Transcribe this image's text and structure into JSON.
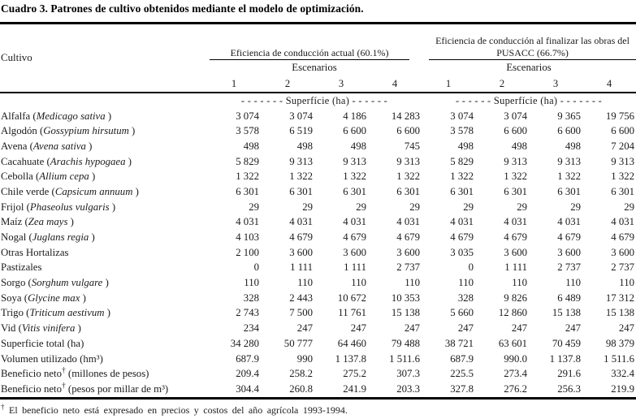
{
  "title": "Cuadro 3. Patrones de cultivo obtenidos mediante el modelo de optimización.",
  "header": {
    "cultivo": "Cultivo",
    "group_left": "Eficiencia de conducción actual (60.1%)",
    "group_right": "Eficiencia de conducción al finalizar las obras del PUSACC (66.7%)",
    "escenarios_label": "Escenarios",
    "scenarios": [
      "1",
      "2",
      "3",
      "4"
    ]
  },
  "table": {
    "unit_left": "- - - - - - -  Superfície (ha)  - - - - - -",
    "unit_right": "- - - - - -  Superfície (ha)  - - - - - - -",
    "rows": [
      {
        "label": "Alfalfa",
        "latin": "Medicago sativa",
        "values": [
          "3 074",
          "3 074",
          "4 186",
          "14 283",
          "3 074",
          "3 074",
          "9 365",
          "19 756"
        ]
      },
      {
        "label": "Algodón",
        "latin": "Gossypium hirsutum",
        "values": [
          "3 578",
          "6 519",
          "6 600",
          "6 600",
          "3 578",
          "6 600",
          "6 600",
          "6 600"
        ]
      },
      {
        "label": "Avena",
        "latin": "Avena sativa",
        "values": [
          "498",
          "498",
          "498",
          "745",
          "498",
          "498",
          "498",
          "7 204"
        ]
      },
      {
        "label": "Cacahuate",
        "latin": "Arachis hypogaea",
        "values": [
          "5 829",
          "9 313",
          "9 313",
          "9 313",
          "5 829",
          "9 313",
          "9 313",
          "9 313"
        ]
      },
      {
        "label": "Cebolla",
        "latin": "Allium cepa",
        "values": [
          "1 322",
          "1 322",
          "1 322",
          "1 322",
          "1 322",
          "1 322",
          "1 322",
          "1 322"
        ]
      },
      {
        "label": "Chile verde",
        "latin": "Capsicum annuum",
        "values": [
          "6 301",
          "6 301",
          "6 301",
          "6 301",
          "6 301",
          "6 301",
          "6 301",
          "6 301"
        ]
      },
      {
        "label": "Frijol",
        "latin": "Phaseolus vulgaris",
        "values": [
          "29",
          "29",
          "29",
          "29",
          "29",
          "29",
          "29",
          "29"
        ]
      },
      {
        "label": "Maíz",
        "latin": "Zea mays",
        "values": [
          "4 031",
          "4 031",
          "4 031",
          "4 031",
          "4 031",
          "4 031",
          "4 031",
          "4 031"
        ]
      },
      {
        "label": "Nogal",
        "latin": "Juglans regia",
        "values": [
          "4 103",
          "4 679",
          "4 679",
          "4 679",
          "4 679",
          "4 679",
          "4 679",
          "4 679"
        ]
      },
      {
        "label": "Otras Hortalizas",
        "latin": "",
        "values": [
          "2 100",
          "3 600",
          "3 600",
          "3 600",
          "3 035",
          "3 600",
          "3 600",
          "3 600"
        ]
      },
      {
        "label": "Pastizales",
        "latin": "",
        "values": [
          "0",
          "1 111",
          "1 111",
          "2 737",
          "0",
          "1 111",
          "2 737",
          "2 737"
        ]
      },
      {
        "label": "Sorgo",
        "latin": "Sorghum vulgare",
        "values": [
          "110",
          "110",
          "110",
          "110",
          "110",
          "110",
          "110",
          "110"
        ]
      },
      {
        "label": "Soya",
        "latin": "Glycine max",
        "values": [
          "328",
          "2 443",
          "10 672",
          "10 353",
          "328",
          "9 826",
          "6 489",
          "17 312"
        ]
      },
      {
        "label": "Trigo",
        "latin": "Triticum aestivum",
        "values": [
          "2 743",
          "7 500",
          "11 761",
          "15 138",
          "5 660",
          "12 860",
          "15 138",
          "15 138"
        ]
      },
      {
        "label": "Vid",
        "latin": "Vitis vinifera",
        "values": [
          "234",
          "247",
          "247",
          "247",
          "247",
          "247",
          "247",
          "247"
        ]
      },
      {
        "label": "Superficie total (ha)",
        "latin": "",
        "values": [
          "34 280",
          "50 777",
          "64 460",
          "79 488",
          "38 721",
          "63 601",
          "70 459",
          "98 379"
        ]
      },
      {
        "label": "Volumen utilizado (hm³)",
        "latin": "",
        "values": [
          "687.9",
          "990",
          "1 137.8",
          "1 511.6",
          "687.9",
          "990.0",
          "1 137.8",
          "1 511.6"
        ]
      },
      {
        "label": "Beneficio neto† (millones de pesos)",
        "latin": "",
        "values": [
          "209.4",
          "258.2",
          "275.2",
          "307.3",
          "225.5",
          "273.4",
          "291.6",
          "332.4"
        ]
      },
      {
        "label": "Beneficio neto† (pesos por millar de m³)",
        "latin": "",
        "values": [
          "304.4",
          "260.8",
          "241.9",
          "203.3",
          "327.8",
          "276.2",
          "256.3",
          "219.9"
        ]
      }
    ]
  },
  "footnote": {
    "symbol": "†",
    "text": "El beneficio neto está expresado en precios y costos del año agrícola 1993-1994."
  }
}
